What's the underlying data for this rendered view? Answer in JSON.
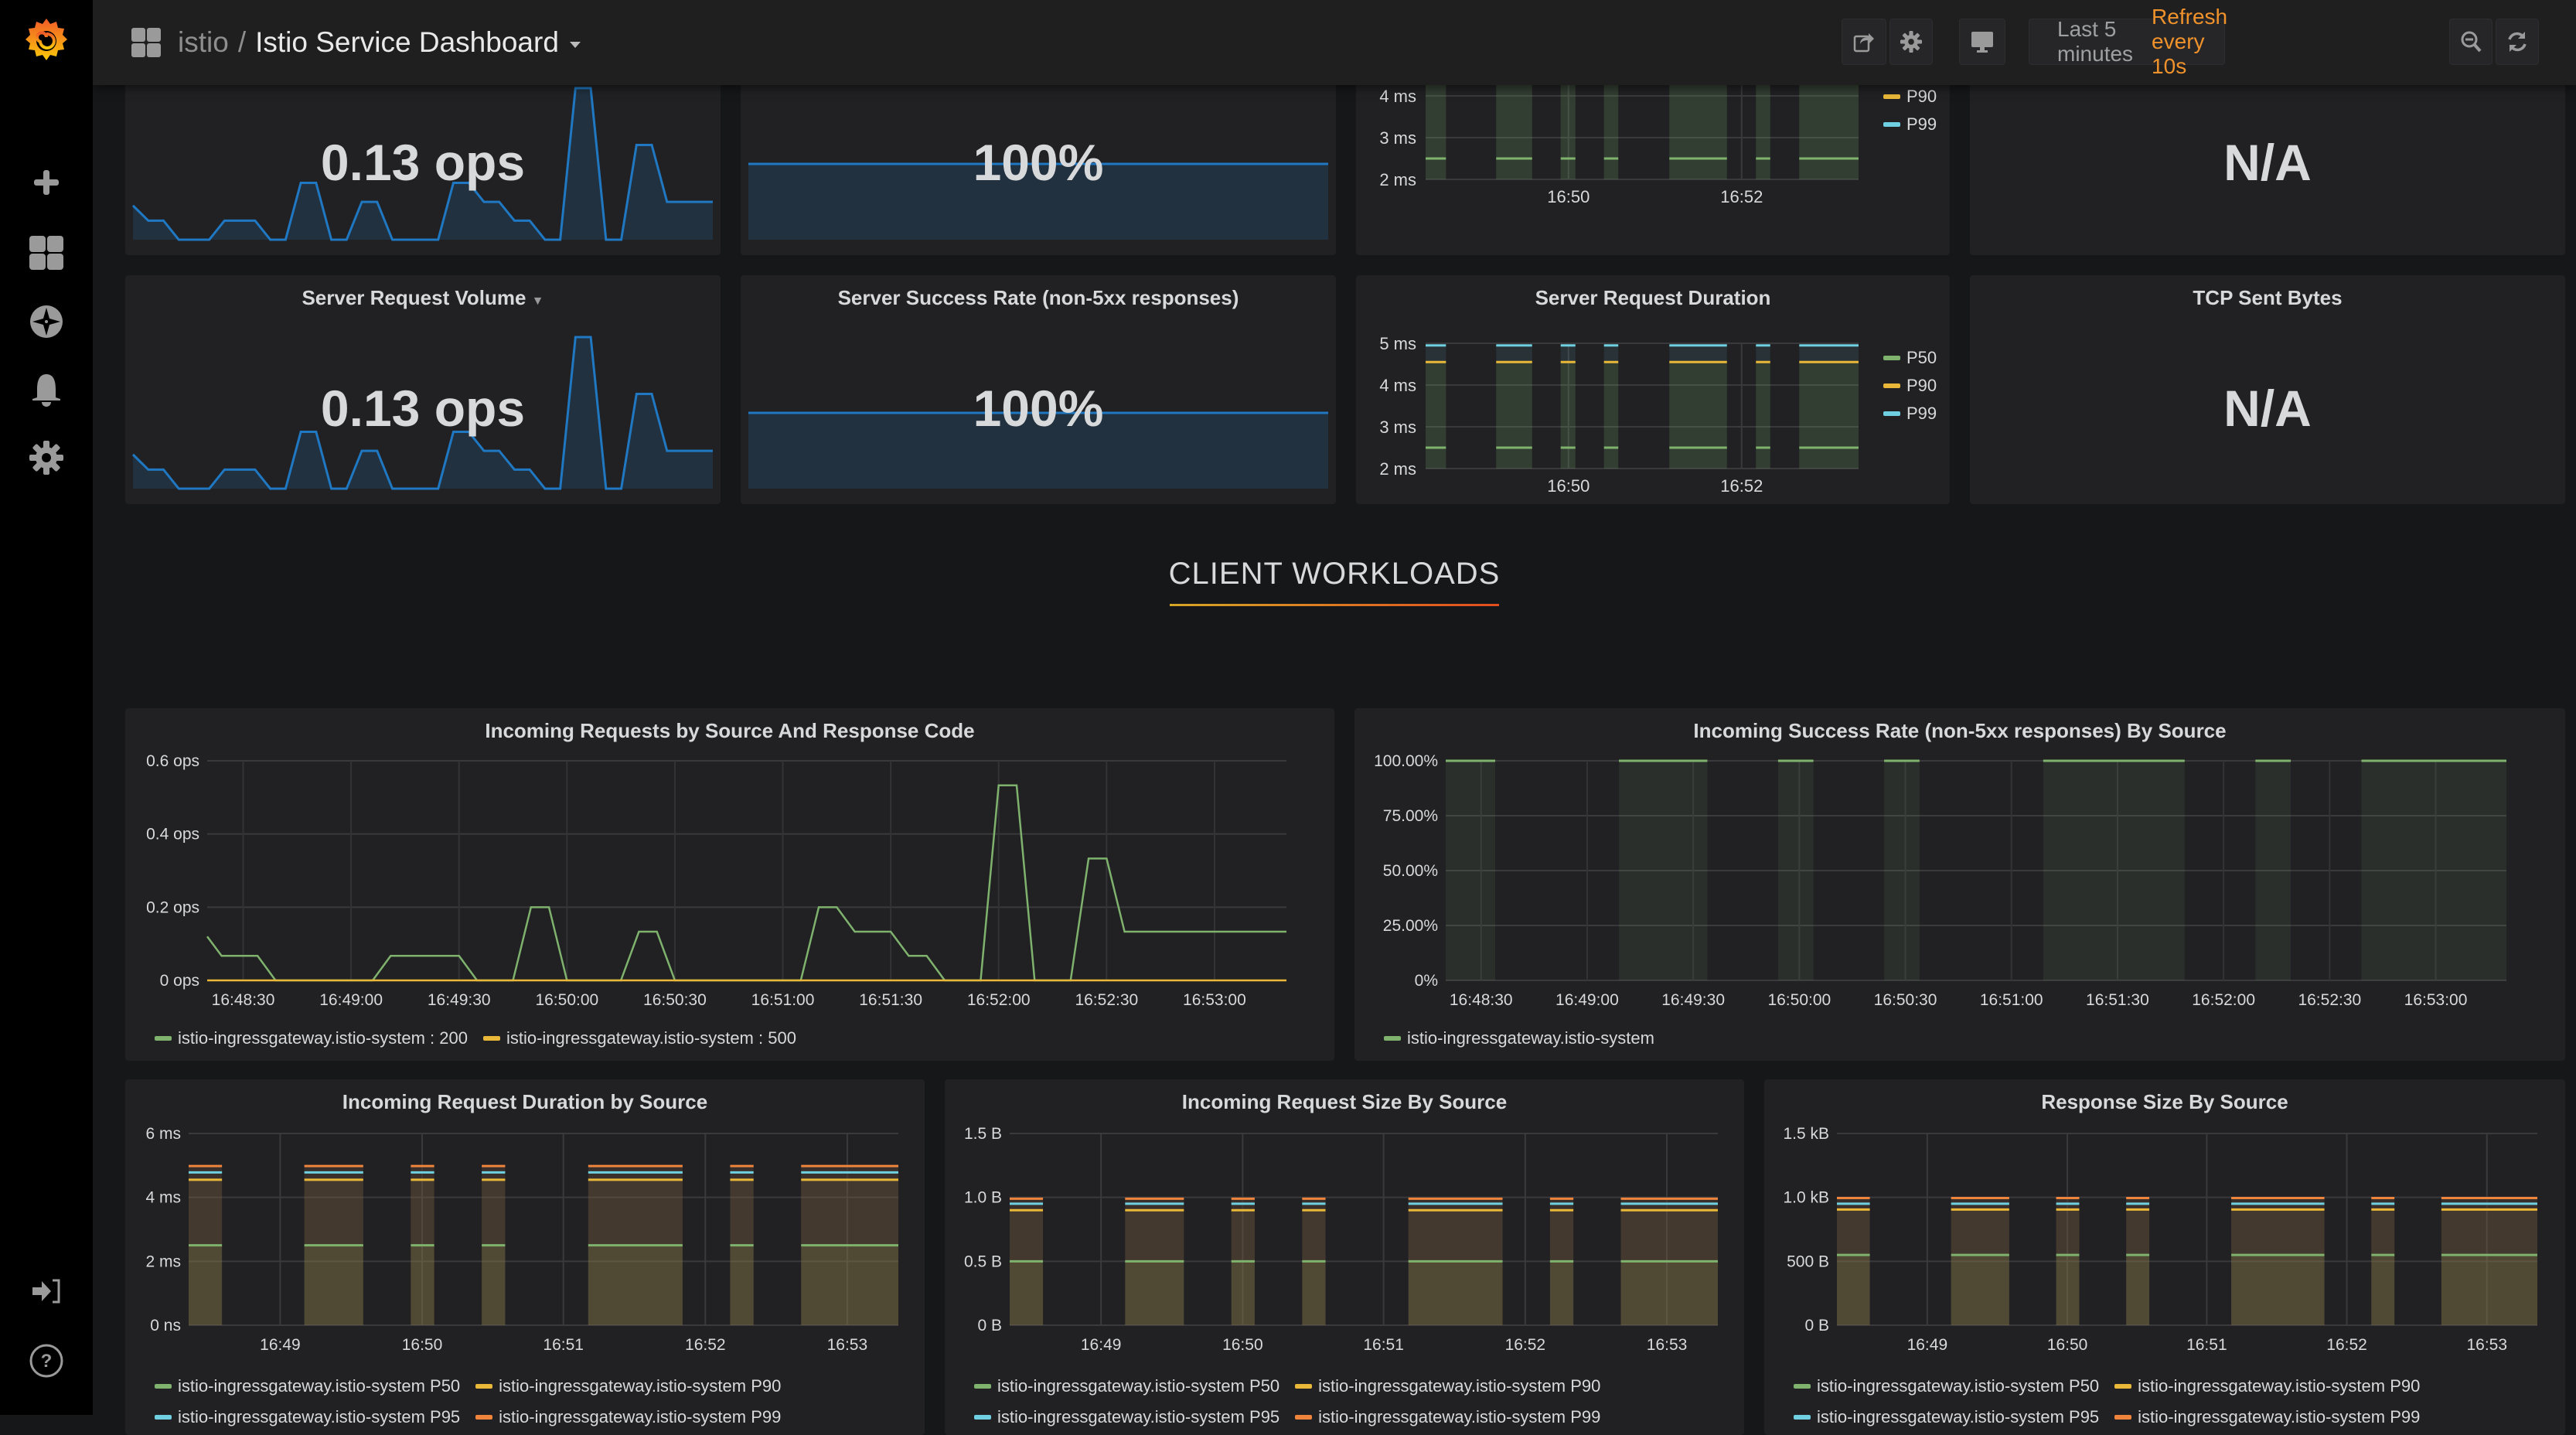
{
  "header": {
    "folder": "istio",
    "separator": "/",
    "title": "Istio Service Dashboard",
    "time_range": "Last 5 minutes",
    "refresh": "Refresh every 10s",
    "buttons": [
      "share-icon",
      "gear-icon",
      "monitor-icon",
      "zoom-out-icon",
      "refresh-icon"
    ]
  },
  "sidebar": {
    "items": [
      {
        "icon": "plus-icon",
        "label": "Create"
      },
      {
        "icon": "dashboards-icon",
        "label": "Dashboards"
      },
      {
        "icon": "compass-icon",
        "label": "Explore"
      },
      {
        "icon": "bell-icon",
        "label": "Alerting"
      },
      {
        "icon": "gear-icon",
        "label": "Configuration"
      }
    ],
    "bottom": [
      {
        "icon": "sign-in-icon",
        "label": "Sign In"
      },
      {
        "icon": "help-icon",
        "label": "Help"
      }
    ]
  },
  "row1": {
    "volume": {
      "title": "",
      "value": "0.13 ops"
    },
    "success": {
      "title": "",
      "value": "100%"
    },
    "duration": {
      "title": ""
    },
    "tcp": {
      "title": "",
      "value": "N/A"
    }
  },
  "row2": {
    "volume": {
      "title": "Server Request Volume",
      "value": "0.13 ops"
    },
    "success": {
      "title": "Server Success Rate (non-5xx responses)",
      "value": "100%"
    },
    "duration": {
      "title": "Server Request Duration"
    },
    "tcp": {
      "title": "TCP Sent Bytes",
      "value": "N/A"
    }
  },
  "section": {
    "title": "CLIENT WORKLOADS"
  },
  "colors": {
    "blue": "#1f78c1",
    "green": "#7eb26d",
    "yellow": "#eab839",
    "cyan": "#6ed0e0",
    "orange": "#ef843c",
    "accent_orange": "#f0922b"
  },
  "chart_data": [
    {
      "id": "server-request-volume-sparkline",
      "type": "area",
      "title": "Server Request Volume",
      "values": [
        0.12,
        0.067,
        0.067,
        0,
        0,
        0,
        0.067,
        0.067,
        0.067,
        0,
        0,
        0.2,
        0.2,
        0,
        0,
        0.133,
        0.133,
        0,
        0,
        0,
        0,
        0.2,
        0.2,
        0.133,
        0.133,
        0.067,
        0.067,
        0,
        0,
        0.533,
        0.533,
        0,
        0,
        0.333,
        0.333,
        0.133,
        0.133,
        0.133,
        0.133
      ]
    },
    {
      "id": "server-success-rate-sparkline",
      "type": "area",
      "title": "Server Success Rate (non-5xx responses)",
      "values": [
        1,
        1
      ],
      "ylim": [
        0,
        2
      ]
    },
    {
      "id": "server-request-duration",
      "type": "area",
      "title": "Server Request Duration",
      "yticks": [
        "2 ms",
        "3 ms",
        "4 ms",
        "5 ms"
      ],
      "ylim": [
        2,
        5
      ],
      "xticks": [
        "16:50",
        "16:52"
      ],
      "series": [
        {
          "name": "P50",
          "value": 2.5,
          "color": "#7eb26d"
        },
        {
          "name": "P90",
          "value": 4.55,
          "color": "#eab839"
        },
        {
          "name": "P99",
          "value": 4.95,
          "color": "#6ed0e0"
        }
      ],
      "active_intervals": [
        [
          0,
          0.047
        ],
        [
          0.163,
          0.246
        ],
        [
          0.312,
          0.346
        ],
        [
          0.412,
          0.445
        ],
        [
          0.563,
          0.696
        ],
        [
          0.763,
          0.796
        ],
        [
          0.863,
          1.0
        ]
      ]
    },
    {
      "id": "incoming-requests",
      "type": "line",
      "title": "Incoming Requests by Source And Response Code",
      "ylabel": "",
      "yticks": [
        "0 ops",
        "0.2 ops",
        "0.4 ops",
        "0.6 ops"
      ],
      "ylim": [
        0,
        0.6
      ],
      "xticks": [
        "16:48:30",
        "16:49:00",
        "16:49:30",
        "16:50:00",
        "16:50:30",
        "16:51:00",
        "16:51:30",
        "16:52:00",
        "16:52:30",
        "16:53:00"
      ],
      "x_range_seconds": [
        -10,
        290
      ],
      "series": [
        {
          "name": "istio-ingressgateway.istio-system : 200",
          "color": "#7eb26d",
          "points": [
            [
              -10,
              0.12
            ],
            [
              -6,
              0.067
            ],
            [
              4,
              0.067
            ],
            [
              9,
              0
            ],
            [
              36,
              0
            ],
            [
              41,
              0.067
            ],
            [
              60,
              0.067
            ],
            [
              65,
              0
            ],
            [
              75,
              0
            ],
            [
              80,
              0.2
            ],
            [
              85,
              0.2
            ],
            [
              90,
              0
            ],
            [
              105,
              0
            ],
            [
              110,
              0.133
            ],
            [
              115,
              0.133
            ],
            [
              120,
              0
            ],
            [
              155,
              0
            ],
            [
              160,
              0.2
            ],
            [
              165,
              0.2
            ],
            [
              170,
              0.133
            ],
            [
              180,
              0.133
            ],
            [
              185,
              0.067
            ],
            [
              190,
              0.067
            ],
            [
              195,
              0
            ],
            [
              205,
              0
            ],
            [
              210,
              0.533
            ],
            [
              215,
              0.533
            ],
            [
              220,
              0
            ],
            [
              230,
              0
            ],
            [
              235,
              0.333
            ],
            [
              240,
              0.333
            ],
            [
              245,
              0.133
            ],
            [
              290,
              0.133
            ]
          ]
        },
        {
          "name": "istio-ingressgateway.istio-system : 500",
          "color": "#eab839",
          "points": [
            [
              -10,
              0
            ],
            [
              290,
              0
            ]
          ]
        }
      ]
    },
    {
      "id": "incoming-success-rate",
      "type": "area",
      "title": "Incoming Success Rate (non-5xx responses) By Source",
      "yticks": [
        "0%",
        "25.00%",
        "50.00%",
        "75.00%",
        "100.00%"
      ],
      "ylim": [
        0,
        100
      ],
      "xticks": [
        "16:48:30",
        "16:49:00",
        "16:49:30",
        "16:50:00",
        "16:50:30",
        "16:51:00",
        "16:51:30",
        "16:52:00",
        "16:52:30",
        "16:53:00"
      ],
      "x_range_seconds": [
        -10,
        290
      ],
      "series": [
        {
          "name": "istio-ingressgateway.istio-system",
          "color": "#7eb26d",
          "value": 100
        }
      ],
      "active_intervals": [
        [
          -10,
          4
        ],
        [
          39,
          64
        ],
        [
          84,
          94
        ],
        [
          114,
          124
        ],
        [
          159,
          199
        ],
        [
          219,
          229
        ],
        [
          249,
          290
        ]
      ]
    },
    {
      "id": "incoming-request-duration",
      "type": "area",
      "title": "Incoming Request Duration by Source",
      "yticks": [
        "0 ns",
        "2 ms",
        "4 ms",
        "6 ms"
      ],
      "ylim": [
        0,
        6
      ],
      "xticks": [
        "16:49",
        "16:50",
        "16:51",
        "16:52",
        "16:53"
      ],
      "series": [
        {
          "name": "istio-ingressgateway.istio-system P50",
          "color": "#7eb26d",
          "value": 2.5
        },
        {
          "name": "istio-ingressgateway.istio-system P90",
          "color": "#eab839",
          "value": 4.55
        },
        {
          "name": "istio-ingressgateway.istio-system P95",
          "color": "#6ed0e0",
          "value": 4.78
        },
        {
          "name": "istio-ingressgateway.istio-system P99",
          "color": "#ef843c",
          "value": 4.98
        }
      ],
      "active_intervals": [
        [
          0,
          0.047
        ],
        [
          0.163,
          0.246
        ],
        [
          0.313,
          0.346
        ],
        [
          0.413,
          0.446
        ],
        [
          0.563,
          0.696
        ],
        [
          0.763,
          0.796
        ],
        [
          0.863,
          1.0
        ]
      ]
    },
    {
      "id": "incoming-request-size",
      "type": "area",
      "title": "Incoming Request Size By Source",
      "yticks": [
        "0 B",
        "0.5 B",
        "1.0 B",
        "1.5 B"
      ],
      "ylim": [
        0,
        1.5
      ],
      "xticks": [
        "16:49",
        "16:50",
        "16:51",
        "16:52",
        "16:53"
      ],
      "series": [
        {
          "name": "istio-ingressgateway.istio-system P50",
          "color": "#7eb26d",
          "value": 0.5
        },
        {
          "name": "istio-ingressgateway.istio-system P90",
          "color": "#eab839",
          "value": 0.9
        },
        {
          "name": "istio-ingressgateway.istio-system P95",
          "color": "#6ed0e0",
          "value": 0.95
        },
        {
          "name": "istio-ingressgateway.istio-system P99",
          "color": "#ef843c",
          "value": 0.99
        }
      ],
      "active_intervals": [
        [
          0,
          0.047
        ],
        [
          0.163,
          0.246
        ],
        [
          0.313,
          0.346
        ],
        [
          0.413,
          0.446
        ],
        [
          0.563,
          0.696
        ],
        [
          0.763,
          0.796
        ],
        [
          0.863,
          1.0
        ]
      ]
    },
    {
      "id": "response-size",
      "type": "area",
      "title": "Response Size By Source",
      "yticks": [
        "0 B",
        "500 B",
        "1.0 kB",
        "1.5 kB"
      ],
      "ylim": [
        0,
        1500
      ],
      "xticks": [
        "16:49",
        "16:50",
        "16:51",
        "16:52",
        "16:53"
      ],
      "series": [
        {
          "name": "istio-ingressgateway.istio-system P50",
          "color": "#7eb26d",
          "value": 550
        },
        {
          "name": "istio-ingressgateway.istio-system P90",
          "color": "#eab839",
          "value": 905
        },
        {
          "name": "istio-ingressgateway.istio-system P95",
          "color": "#6ed0e0",
          "value": 950
        },
        {
          "name": "istio-ingressgateway.istio-system P99",
          "color": "#ef843c",
          "value": 995
        }
      ],
      "active_intervals": [
        [
          0,
          0.047
        ],
        [
          0.163,
          0.246
        ],
        [
          0.313,
          0.346
        ],
        [
          0.413,
          0.446
        ],
        [
          0.563,
          0.696
        ],
        [
          0.763,
          0.796
        ],
        [
          0.863,
          1.0
        ]
      ]
    }
  ]
}
